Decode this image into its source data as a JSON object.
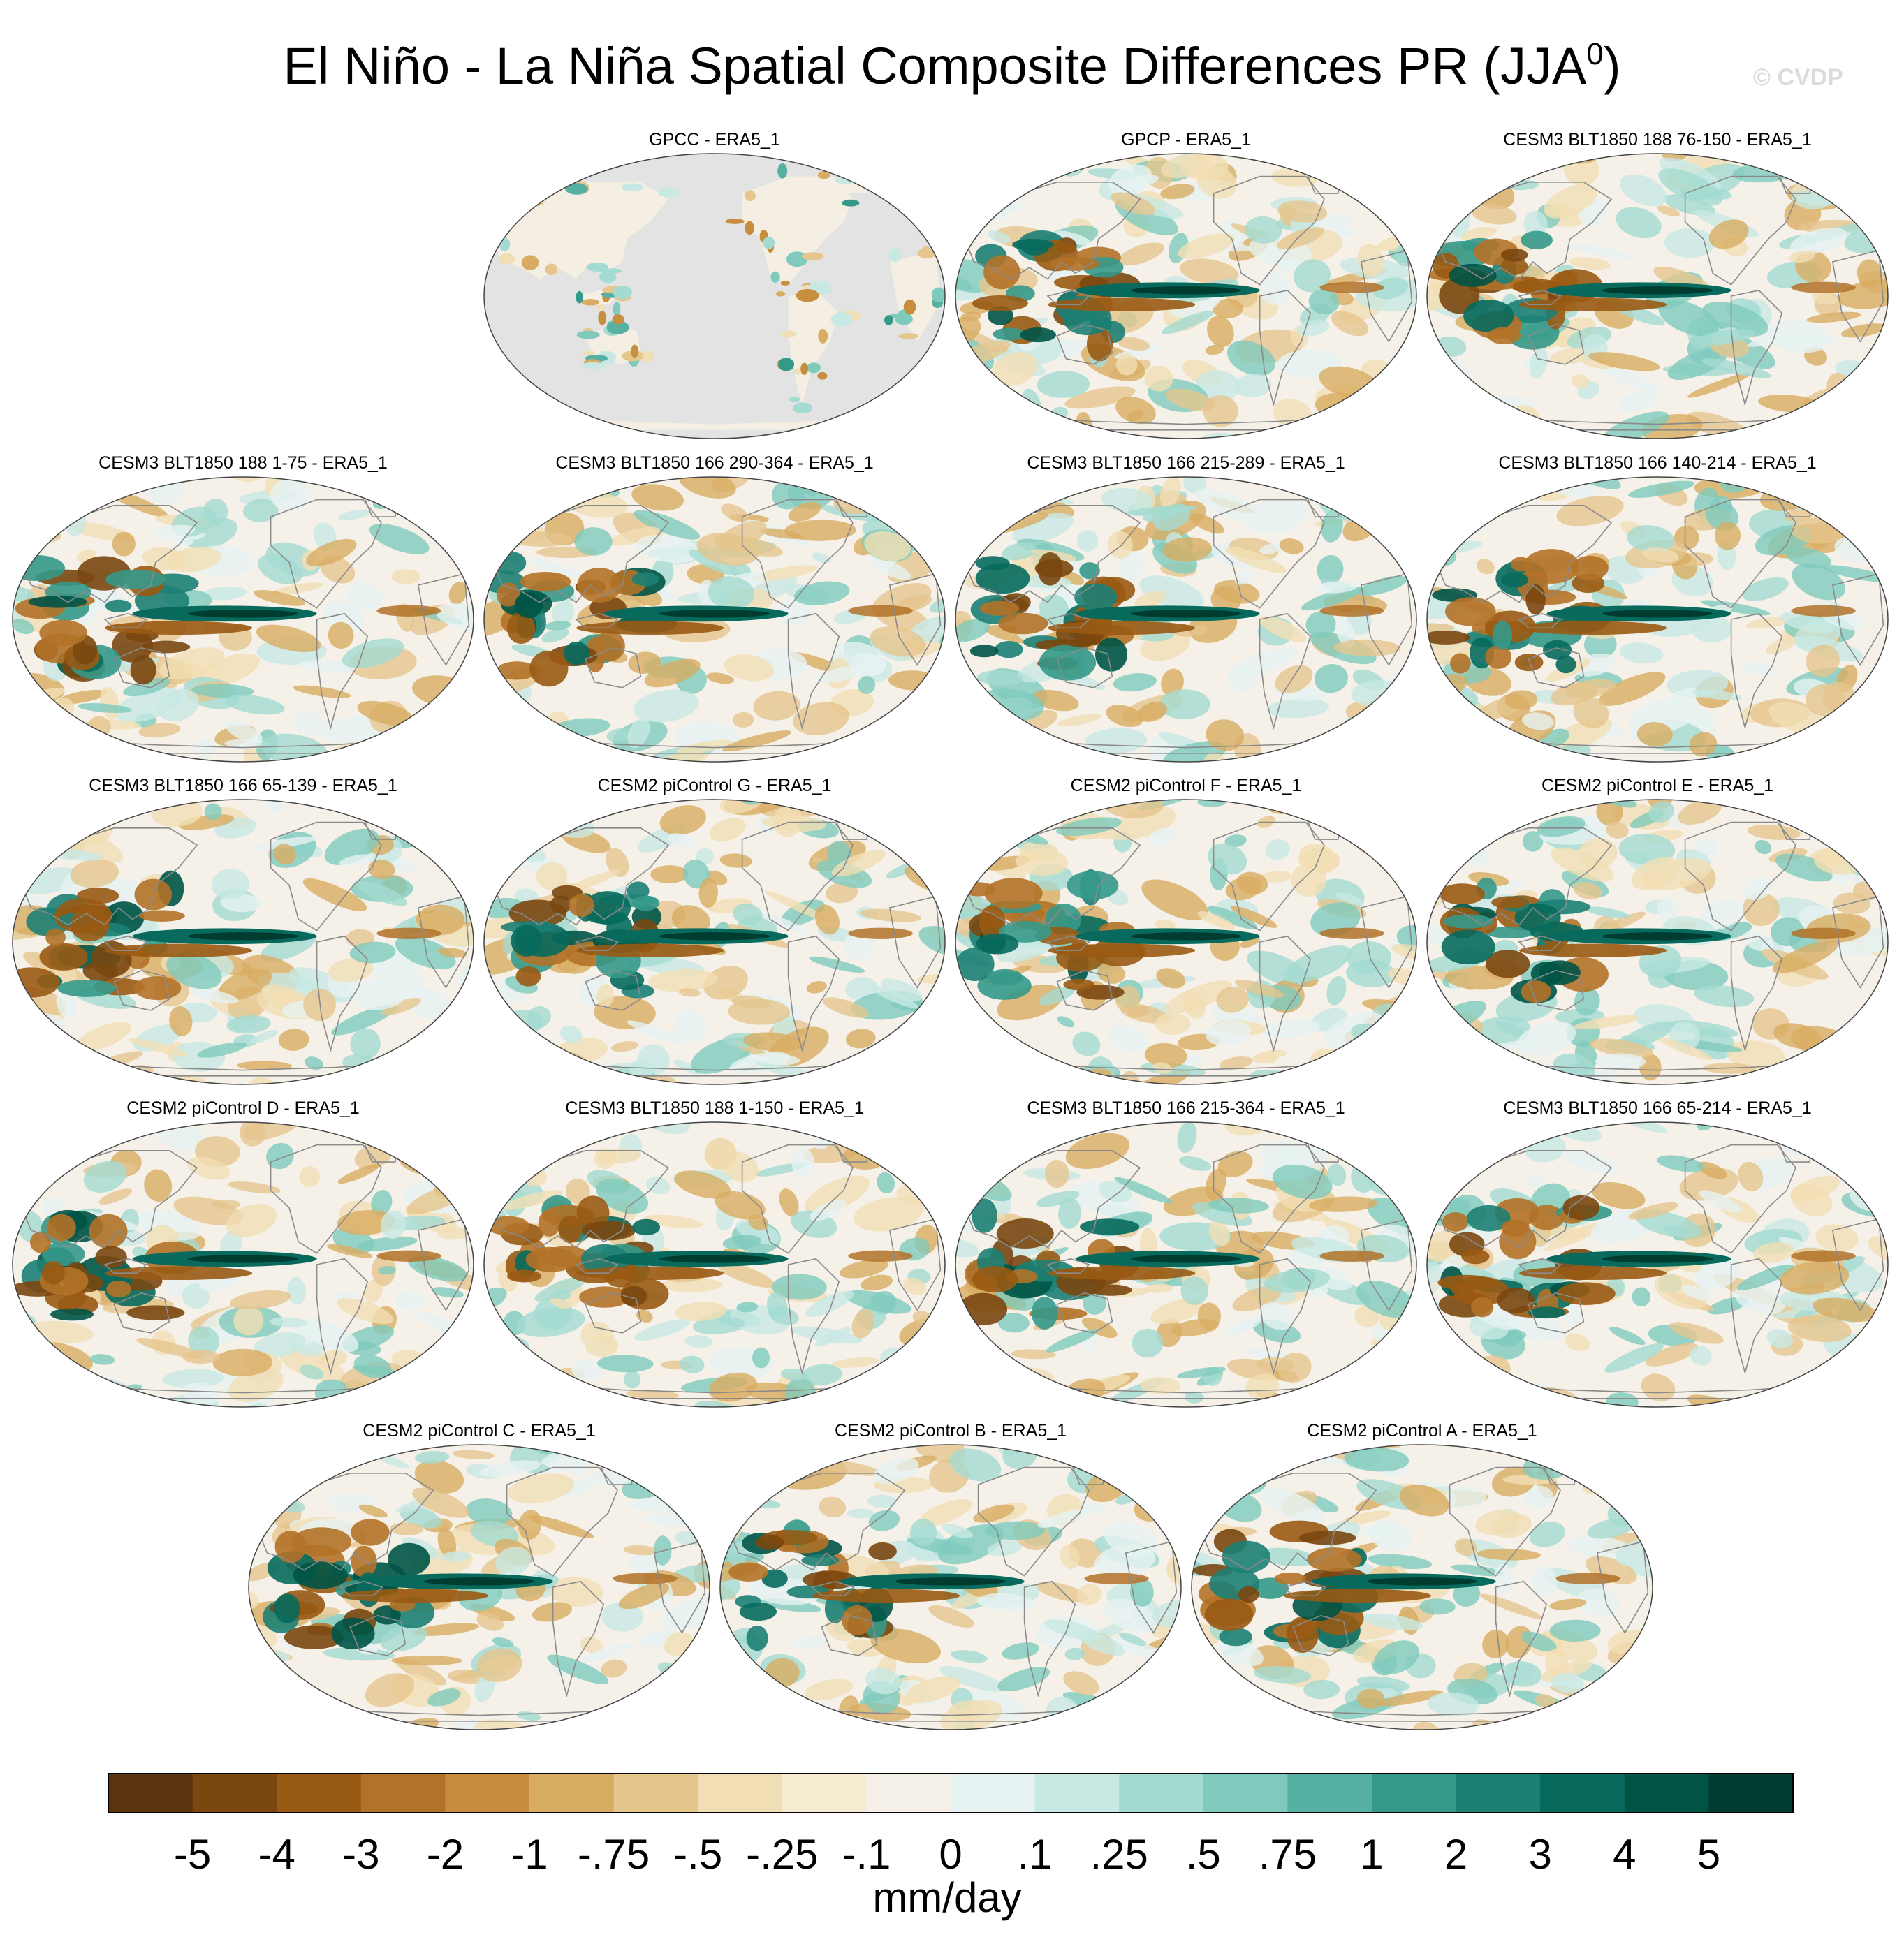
{
  "chart_data": {
    "type": "heatmap",
    "title": "El Niño - La Niña Spatial Composite Differences PR (JJA",
    "title_superscript": "0",
    "title_suffix": ")",
    "watermark": "© CVDP",
    "projection": "robinson (global, Pacific-centered)",
    "panels": [
      {
        "title": "GPCC - ERA5_1",
        "land_only": true
      },
      {
        "title": "GPCP - ERA5_1"
      },
      {
        "title": "CESM3 BLT1850 188 76-150 - ERA5_1"
      },
      {
        "title": "CESM3 BLT1850 188 1-75 - ERA5_1"
      },
      {
        "title": "CESM3 BLT1850 166 290-364 - ERA5_1"
      },
      {
        "title": "CESM3 BLT1850 166 215-289 - ERA5_1"
      },
      {
        "title": "CESM3 BLT1850 166 140-214 - ERA5_1"
      },
      {
        "title": "CESM3 BLT1850 166 65-139 - ERA5_1"
      },
      {
        "title": "CESM2 piControl G - ERA5_1"
      },
      {
        "title": "CESM2 piControl F - ERA5_1"
      },
      {
        "title": "CESM2 piControl E - ERA5_1"
      },
      {
        "title": "CESM2 piControl D - ERA5_1"
      },
      {
        "title": "CESM3 BLT1850 188 1-150 - ERA5_1"
      },
      {
        "title": "CESM3 BLT1850 166 215-364 - ERA5_1"
      },
      {
        "title": "CESM3 BLT1850 166 65-214 - ERA5_1"
      },
      {
        "title": "CESM2 piControl C - ERA5_1"
      },
      {
        "title": "CESM2 piControl B - ERA5_1"
      },
      {
        "title": "CESM2 piControl A - ERA5_1"
      }
    ],
    "colorbar": {
      "labels": [
        "-5",
        "-4",
        "-3",
        "-2",
        "-1",
        "-.75",
        "-.5",
        "-.25",
        "-.1",
        "0",
        ".1",
        ".25",
        ".5",
        ".75",
        "1",
        "2",
        "3",
        "4",
        "5"
      ],
      "colors": [
        "#5a340e",
        "#7a470f",
        "#995a13",
        "#b27228",
        "#c88e3f",
        "#d8ac62",
        "#e5c68d",
        "#f1deb4",
        "#f6ecd2",
        "#f5f1e8",
        "#e6f2f1",
        "#c8e9e3",
        "#a4dbd1",
        "#7fcabd",
        "#57b1a2",
        "#35998a",
        "#1d8074",
        "#076a5d",
        "#005446",
        "#003c30"
      ],
      "units": "mm/day"
    }
  }
}
